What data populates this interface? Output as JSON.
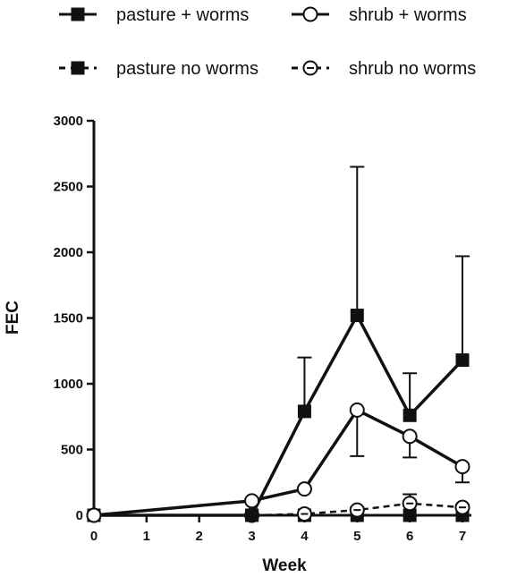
{
  "chart_data": {
    "type": "line",
    "title": "",
    "xlabel": "Week",
    "ylabel": "FEC",
    "xlim": [
      0,
      7
    ],
    "ylim": [
      0,
      3000
    ],
    "xticks": [
      "0",
      "1",
      "2",
      "3",
      "4",
      "5",
      "6",
      "7"
    ],
    "yticks": [
      "0",
      "500",
      "1000",
      "1500",
      "2000",
      "2500",
      "3000"
    ],
    "legend_position": "top",
    "series": [
      {
        "name": "pasture + worms",
        "marker": "filled-square",
        "line": "solid",
        "x": [
          0,
          3,
          4,
          5,
          6,
          7
        ],
        "y": [
          0,
          0,
          790,
          1520,
          760,
          1180
        ],
        "error_upper": [
          0,
          0,
          1200,
          2650,
          1080,
          1970
        ]
      },
      {
        "name": "shrub + worms",
        "marker": "open-circle",
        "line": "solid",
        "x": [
          0,
          3,
          4,
          5,
          6,
          7
        ],
        "y": [
          0,
          110,
          200,
          800,
          600,
          370
        ],
        "error_lower": [
          0,
          110,
          190,
          450,
          440,
          250
        ]
      },
      {
        "name": "pasture no worms",
        "marker": "filled-square",
        "line": "dashed",
        "x": [
          0,
          3,
          4,
          5,
          6,
          7
        ],
        "y": [
          0,
          0,
          0,
          0,
          0,
          0
        ]
      },
      {
        "name": "shrub no worms",
        "marker": "dashed-circle",
        "line": "dashed",
        "x": [
          0,
          3,
          4,
          5,
          6,
          7
        ],
        "y": [
          0,
          0,
          10,
          40,
          90,
          60
        ],
        "error_upper": [
          0,
          0,
          15,
          60,
          160,
          80
        ]
      }
    ]
  }
}
